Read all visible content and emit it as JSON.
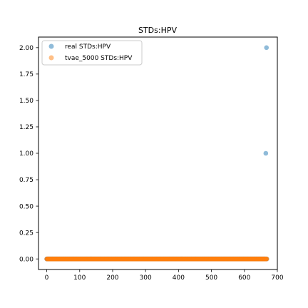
{
  "chart_data": {
    "type": "scatter",
    "title": "STDs:HPV",
    "xlabel": "",
    "ylabel": "",
    "xlim": [
      -25,
      700
    ],
    "ylim": [
      -0.1,
      2.1
    ],
    "xticks": [
      0,
      100,
      200,
      300,
      400,
      500,
      600,
      700
    ],
    "yticks": [
      0.0,
      0.25,
      0.5,
      0.75,
      1.0,
      1.25,
      1.5,
      1.75,
      2.0
    ],
    "xtick_labels": [
      "0",
      "100",
      "200",
      "300",
      "400",
      "500",
      "600",
      "700"
    ],
    "ytick_labels": [
      "0.00",
      "0.25",
      "0.50",
      "0.75",
      "1.00",
      "1.25",
      "1.50",
      "1.75",
      "2.00"
    ],
    "grid": false,
    "legend_position": "upper-left",
    "series": [
      {
        "name": "real STDs:HPV",
        "color": "#1f77b4",
        "alpha": 0.5,
        "x_range": [
          0,
          668
        ],
        "baseline_y": 0,
        "special_points": [
          {
            "x": 665,
            "y": 1
          },
          {
            "x": 667,
            "y": 2
          }
        ]
      },
      {
        "name": "tvae_5000 STDs:HPV",
        "color": "#ff7f0e",
        "alpha": 0.5,
        "x_range": [
          0,
          668
        ],
        "baseline_y": 0,
        "special_points": []
      }
    ]
  }
}
